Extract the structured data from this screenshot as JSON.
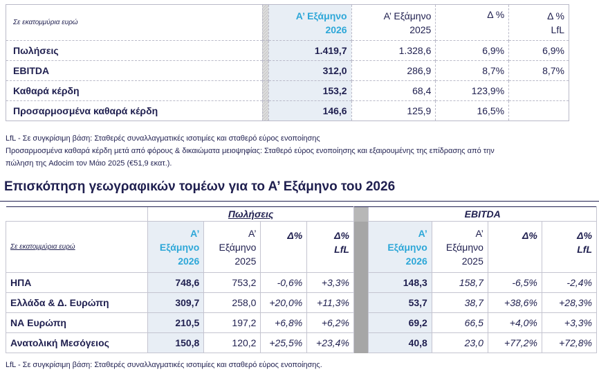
{
  "table1": {
    "unit": "Σε εκατομμύρια ευρώ",
    "headers": {
      "h2026": [
        "Α’ Εξάμηνο",
        "2026"
      ],
      "h2025": [
        "Α’ Εξάμηνο",
        "2025"
      ],
      "delta": "Δ %",
      "lfl": [
        "Δ %",
        "LfL"
      ]
    },
    "rows": [
      {
        "label": "Πωλήσεις",
        "v2026": "1.419,7",
        "v2025": "1.328,6",
        "delta": "6,9%",
        "lfl": "6,9%"
      },
      {
        "label": "EBITDA",
        "v2026": "312,0",
        "v2025": "286,9",
        "delta": "8,7%",
        "lfl": "8,7%"
      },
      {
        "label": "Καθαρά κέρδη",
        "v2026": "153,2",
        "v2025": "68,4",
        "delta": "123,9%",
        "lfl": ""
      },
      {
        "label": "Προσαρμοσμένα καθαρά κέρδη",
        "v2026": "146,6",
        "v2025": "125,9",
        "delta": "16,5%",
        "lfl": ""
      }
    ]
  },
  "notes": {
    "n1": "LfL - Σε συγκρίσιμη βάση: Σταθερές συναλλαγματικές ισοτιμίες και σταθερό εύρος ενοποίησης",
    "n2": "Προσαρμοσμένα καθαρά κέρδη μετά από φόρους & δικαιώματα μειοψηφίας: Σταθερό εύρος ενοποίησης και εξαιρουμένης της επίδρασης από την",
    "n3": "πώληση της Adocim τον Μάιο 2025 (€51,9 εκατ.).",
    "n4": "LfL - Σε συγκρίσιμη βάση: Σταθερές συναλλαγματικές ισοτιμίες και σταθερό εύρος ενοποίησης."
  },
  "heading": "Επισκόπηση γεωγραφικών τομέων για το Α’ Εξάμηνο του 2026",
  "table2": {
    "unit": "Σε εκατομμύρια ευρώ",
    "group_sales": "Πωλήσεις",
    "group_ebitda": "EBITDA",
    "headers": {
      "h2026": [
        "Α’",
        "Εξάμηνο",
        "2026"
      ],
      "h2025": [
        "Α’",
        "Εξάμηνο",
        "2025"
      ],
      "delta": "Δ%",
      "lfl": [
        "Δ%",
        "LfL"
      ]
    },
    "rows": [
      {
        "label": "ΗΠΑ",
        "s2026": "748,6",
        "s2025": "753,2",
        "sd": "-0,6%",
        "sl": "+3,3%",
        "e2026": "148,3",
        "e2025": "158,7",
        "ed": "-6,5%",
        "el": "-2,4%"
      },
      {
        "label": "Ελλάδα & Δ. Ευρώπη",
        "s2026": "309,7",
        "s2025": "258,0",
        "sd": "+20,0%",
        "sl": "+11,3%",
        "e2026": "53,7",
        "e2025": "38,7",
        "ed": "+38,6%",
        "el": "+28,3%"
      },
      {
        "label": "ΝΑ Ευρώπη",
        "s2026": "210,5",
        "s2025": "197,2",
        "sd": "+6,8%",
        "sl": "+6,2%",
        "e2026": "69,2",
        "e2025": "66,5",
        "ed": "+4,0%",
        "el": "+3,3%"
      },
      {
        "label": "Ανατολική Μεσόγειος",
        "s2026": "150,8",
        "s2025": "120,2",
        "sd": "+25,5%",
        "sl": "+23,4%",
        "e2026": "40,8",
        "e2025": "23,0",
        "ed": "+77,2%",
        "el": "+72,8%"
      }
    ]
  }
}
